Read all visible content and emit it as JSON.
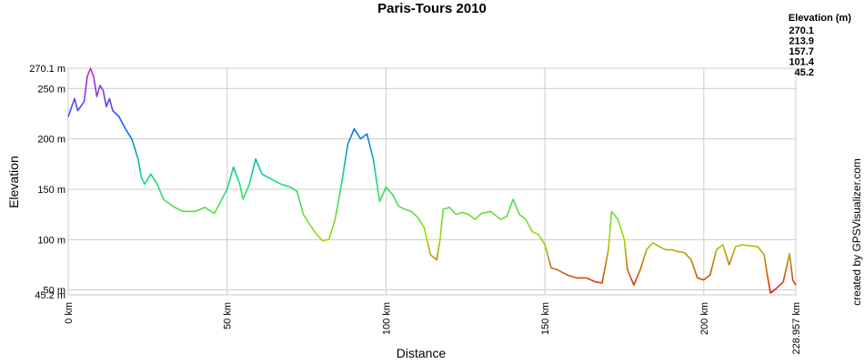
{
  "chart_data": {
    "type": "line",
    "title": "Paris-Tours 2010",
    "x_label": "Distance",
    "y_label": "Elevation",
    "credit": "created by GPSVisualizer.com",
    "legend": {
      "title": "Elevation (m)",
      "values": [
        270.1,
        213.9,
        157.7,
        101.4,
        45.2
      ],
      "colors": [
        "#d020d0",
        "#1060ff",
        "#10e080",
        "#a8d800",
        "#e01010"
      ]
    },
    "xlim": [
      0,
      228.957
    ],
    "ylim": [
      45.2,
      270.1
    ],
    "xticks": [
      {
        "value": 0,
        "label": "0 km"
      },
      {
        "value": 50,
        "label": "50 km"
      },
      {
        "value": 100,
        "label": "100 km"
      },
      {
        "value": 150,
        "label": "150 km"
      },
      {
        "value": 200,
        "label": "200 km"
      },
      {
        "value": 228.957,
        "label": "228.957 km"
      }
    ],
    "yticks": [
      {
        "value": 45.2,
        "label": "45.2 m"
      },
      {
        "value": 50,
        "label": "50 m"
      },
      {
        "value": 100,
        "label": "100 m"
      },
      {
        "value": 150,
        "label": "150 m"
      },
      {
        "value": 200,
        "label": "200 m"
      },
      {
        "value": 250,
        "label": "250 m"
      },
      {
        "value": 270.1,
        "label": "270.1 m"
      }
    ],
    "grid": true,
    "x": [
      0,
      2,
      3,
      5,
      6,
      7,
      8,
      9,
      10,
      11,
      12,
      13,
      14,
      16,
      18,
      20,
      22,
      23,
      24,
      26,
      28,
      30,
      33,
      36,
      40,
      43,
      46,
      48,
      50,
      52,
      54,
      55,
      57,
      59,
      61,
      64,
      67,
      70,
      72,
      74,
      76,
      78,
      80,
      82,
      84,
      86,
      88,
      90,
      92,
      94,
      96,
      98,
      100,
      102,
      104,
      106,
      108,
      110,
      112,
      114,
      116,
      117,
      118,
      120,
      122,
      124,
      126,
      128,
      130,
      133,
      136,
      138,
      140,
      142,
      144,
      146,
      148,
      150,
      152,
      154,
      157,
      160,
      163,
      166,
      168,
      170,
      171,
      173,
      175,
      176,
      178,
      180,
      182,
      184,
      186,
      188,
      190,
      192,
      194,
      196,
      198,
      200,
      202,
      204,
      206,
      208,
      210,
      212,
      214,
      217,
      219,
      220,
      221,
      223,
      225,
      227,
      228,
      228.957
    ],
    "series": [
      {
        "name": "Elevation",
        "values": [
          222,
          240,
          228,
          237,
          262,
          270,
          262,
          242,
          253,
          248,
          232,
          240,
          228,
          222,
          210,
          200,
          180,
          162,
          155,
          165,
          155,
          140,
          133,
          128,
          128,
          132,
          126,
          138,
          150,
          172,
          155,
          140,
          155,
          180,
          165,
          160,
          155,
          152,
          148,
          125,
          115,
          106,
          99,
          100,
          120,
          155,
          195,
          210,
          200,
          205,
          180,
          138,
          152,
          145,
          133,
          130,
          128,
          122,
          112,
          85,
          80,
          100,
          130,
          132,
          125,
          127,
          125,
          120,
          126,
          128,
          120,
          123,
          140,
          125,
          120,
          108,
          105,
          95,
          72,
          70,
          65,
          62,
          62,
          58,
          57,
          90,
          128,
          120,
          100,
          70,
          55,
          70,
          90,
          97,
          93,
          90,
          90,
          88,
          87,
          80,
          62,
          60,
          65,
          90,
          95,
          75,
          93,
          95,
          94,
          93,
          85,
          65,
          47,
          52,
          58,
          86,
          60,
          55
        ]
      }
    ]
  }
}
